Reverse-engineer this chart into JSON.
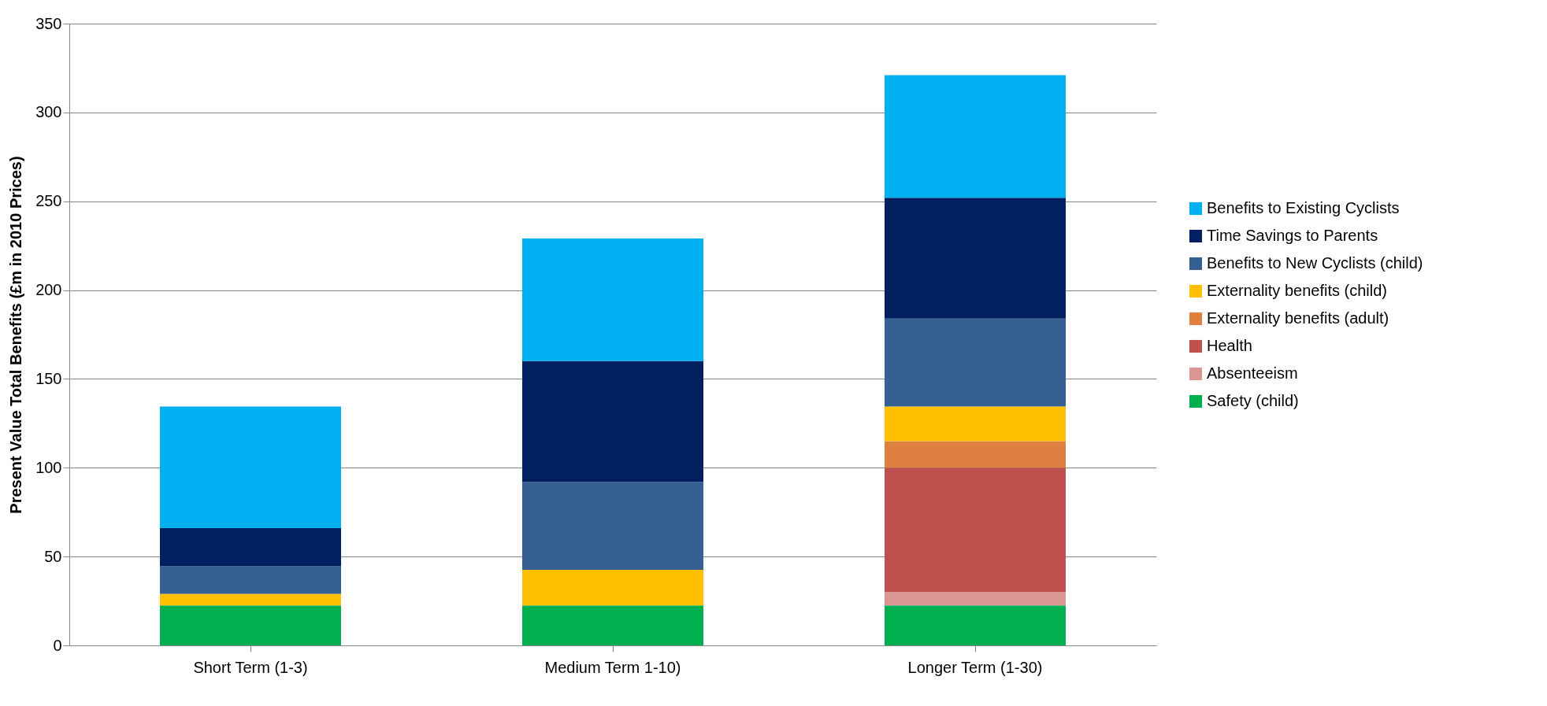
{
  "chart_data": {
    "type": "bar",
    "stacked": true,
    "ylabel": "Present Value Total Benefits (£m in 2010 Prices)",
    "categories": [
      "Short Term (1-3)",
      "Medium  Term 1-10)",
      "Longer Term (1-30)"
    ],
    "ylim": [
      0,
      350
    ],
    "yticks": [
      0,
      50,
      100,
      150,
      200,
      250,
      300,
      350
    ],
    "grid": "y",
    "legend": "right",
    "series": [
      {
        "name": "Safety (child)",
        "color": "#00b050",
        "values": [
          22.5,
          22.5,
          22.5
        ]
      },
      {
        "name": "Absenteeism",
        "color": "#d99694",
        "values": [
          null,
          null,
          7.5
        ]
      },
      {
        "name": "Health",
        "color": "#c0504d",
        "values": [
          null,
          null,
          70
        ]
      },
      {
        "name": "Externality benefits (adult)",
        "color": "#dd8040",
        "values": [
          null,
          null,
          15
        ]
      },
      {
        "name": "Externality benefits (child)",
        "color": "#ffc000",
        "values": [
          6.5,
          20,
          19.5
        ]
      },
      {
        "name": "Benefits to New Cyclists (child)",
        "color": "#376092",
        "values": [
          15.5,
          49.5,
          49.5
        ]
      },
      {
        "name": "Time Savings to Parents",
        "color": "#002060",
        "values": [
          21.5,
          68,
          68
        ]
      },
      {
        "name": "Benefits to Existing Cyclists",
        "color": "#00b0f0",
        "values": [
          68.5,
          69,
          69
        ]
      }
    ]
  }
}
